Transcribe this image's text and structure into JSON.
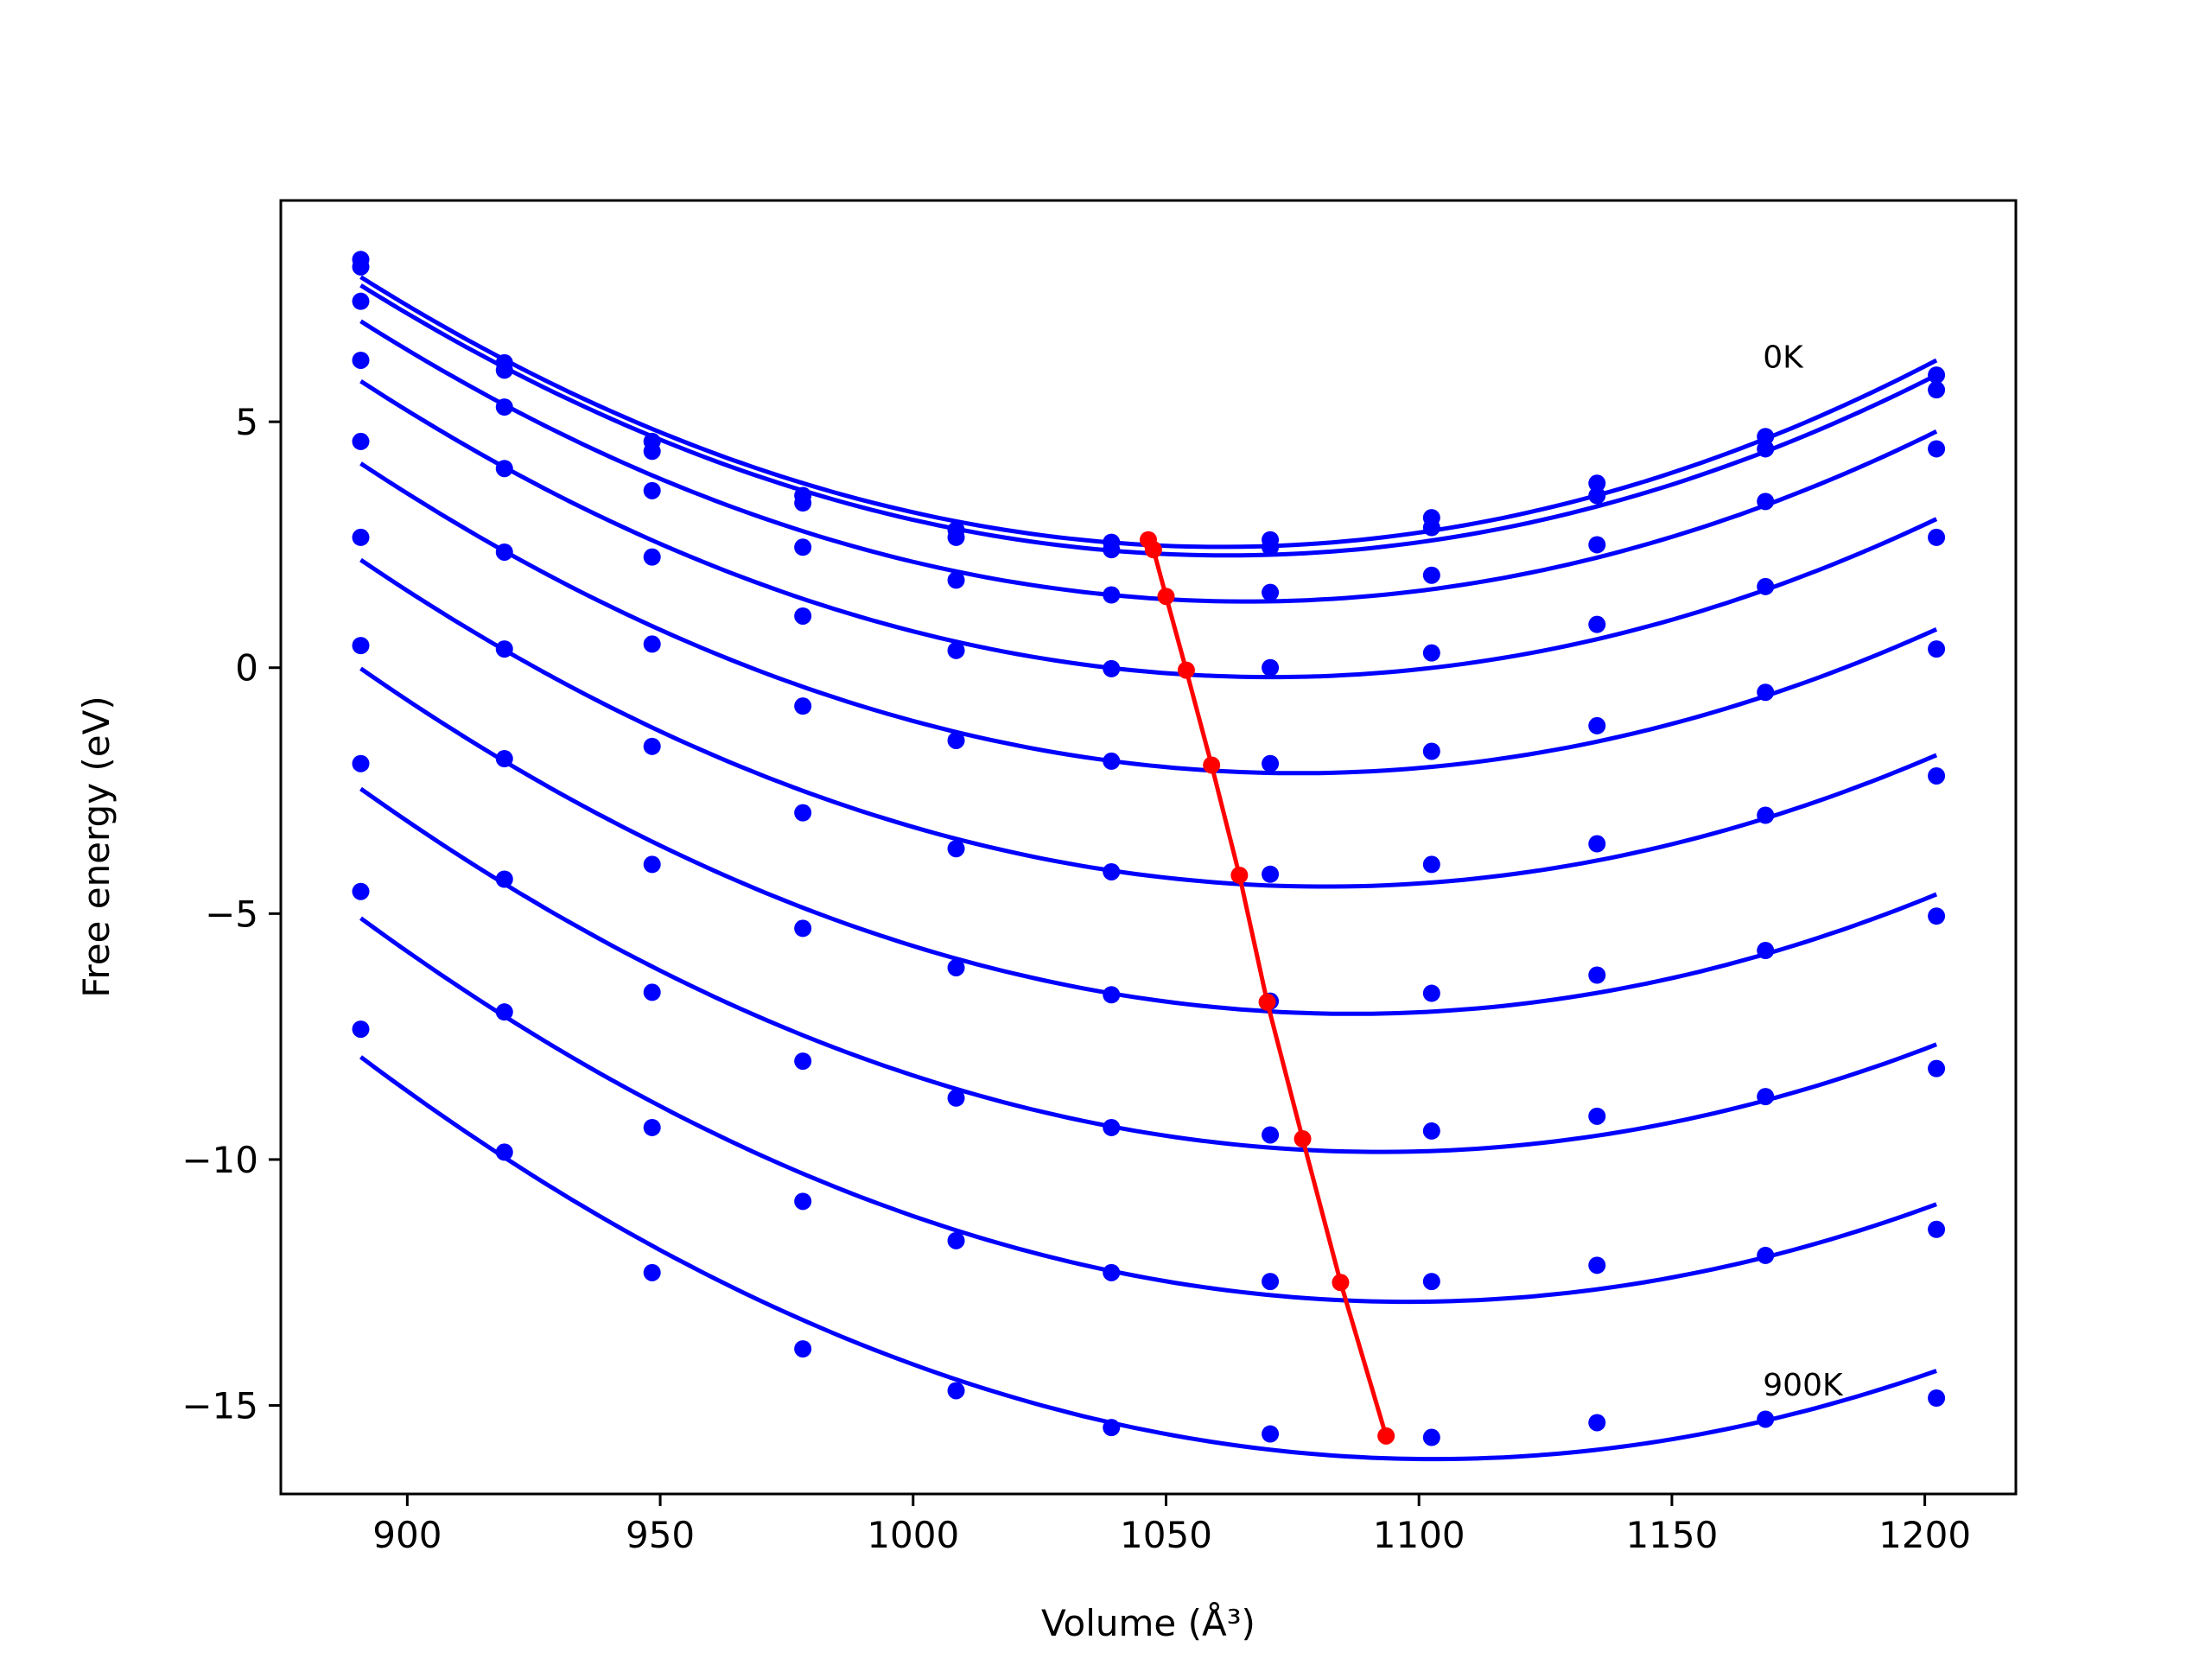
{
  "chart_data": {
    "type": "line",
    "title": "",
    "xlabel": "Volume (Å³)",
    "ylabel": "Free energy (eV)",
    "xlim": [
      875,
      1218
    ],
    "ylim": [
      -16.8,
      9.5
    ],
    "xticks": [
      900,
      950,
      1000,
      1050,
      1100,
      1150,
      1200
    ],
    "xtick_labels": [
      "900",
      "950",
      "1000",
      "1050",
      "1100",
      "1150",
      "1200"
    ],
    "yticks": [
      5,
      0,
      -5,
      -10,
      -15
    ],
    "ytick_labels": [
      "5",
      "0",
      "−5",
      "−10",
      "−15"
    ],
    "grid": false,
    "annotations": [
      {
        "text": "0K",
        "x": 1168,
        "y": 6.1
      },
      {
        "text": "900K",
        "x": 1168,
        "y": -14.8
      }
    ],
    "x": [
      890.8,
      919.2,
      948.4,
      978.2,
      1008.5,
      1039.2,
      1070.6,
      1102.5,
      1135.2,
      1168.5,
      1202.3
    ],
    "series": [
      {
        "color": "#0000ff",
        "values": [
          8.3,
          6.2,
          4.6,
          3.5,
          2.8,
          2.55,
          2.6,
          3.05,
          3.75,
          4.7,
          5.95
        ]
      },
      {
        "color": "#0000ff",
        "values": [
          8.15,
          6.05,
          4.4,
          3.35,
          2.65,
          2.4,
          2.45,
          2.85,
          3.5,
          4.45,
          5.65
        ]
      },
      {
        "color": "#0000ff",
        "values": [
          7.45,
          5.3,
          3.6,
          2.45,
          1.78,
          1.48,
          1.53,
          1.88,
          2.5,
          3.38,
          4.45
        ]
      },
      {
        "color": "#0000ff",
        "values": [
          6.25,
          4.05,
          2.25,
          1.05,
          0.35,
          -0.02,
          0.0,
          0.3,
          0.88,
          1.65,
          2.65
        ]
      },
      {
        "color": "#0000ff",
        "values": [
          4.6,
          2.35,
          0.48,
          -0.78,
          -1.48,
          -1.9,
          -1.95,
          -1.7,
          -1.18,
          -0.5,
          0.38
        ]
      },
      {
        "color": "#0000ff",
        "values": [
          2.65,
          0.38,
          -1.6,
          -2.95,
          -3.68,
          -4.15,
          -4.2,
          -4.0,
          -3.58,
          -3.0,
          -2.2
        ]
      },
      {
        "color": "#0000ff",
        "values": [
          0.45,
          -1.85,
          -4.0,
          -5.3,
          -6.1,
          -6.65,
          -6.78,
          -6.62,
          -6.25,
          -5.75,
          -5.05
        ]
      },
      {
        "color": "#0000ff",
        "values": [
          -1.95,
          -4.3,
          -6.6,
          -8.0,
          -8.75,
          -9.35,
          -9.5,
          -9.42,
          -9.12,
          -8.72,
          -8.15
        ]
      },
      {
        "color": "#0000ff",
        "values": [
          -4.55,
          -7.0,
          -9.35,
          -10.85,
          -11.65,
          -12.3,
          -12.48,
          -12.48,
          -12.15,
          -11.95,
          -11.42
        ]
      },
      {
        "color": "#0000ff",
        "values": [
          -7.35,
          -9.85,
          -12.3,
          -13.85,
          -14.7,
          -15.45,
          -15.58,
          -15.65,
          -15.35,
          -15.28,
          -14.85
        ]
      }
    ],
    "minima": {
      "color": "#ff0000",
      "x": [
        1046.5,
        1047.5,
        1050.0,
        1054.0,
        1059.0,
        1064.5,
        1070.0,
        1077.0,
        1084.5,
        1093.5
      ],
      "y": [
        2.6,
        2.4,
        1.45,
        -0.05,
        -1.98,
        -4.22,
        -6.8,
        -9.58,
        -12.5,
        -15.62
      ]
    }
  }
}
